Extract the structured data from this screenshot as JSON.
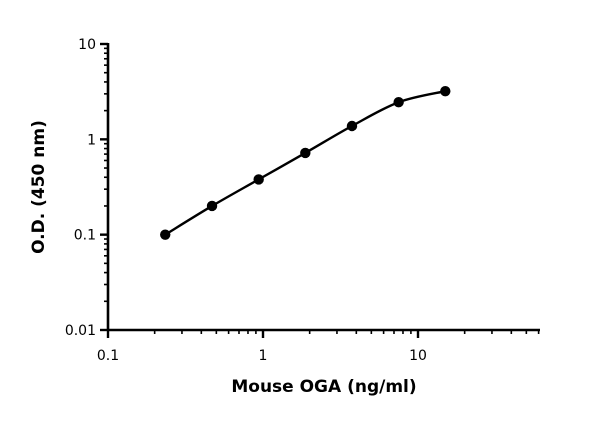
{
  "chart_data": {
    "type": "scatter",
    "xlabel": "Mouse OGA (ng/ml)",
    "ylabel": "O.D. (450 nm)",
    "xscale": "log",
    "yscale": "log",
    "xlim": [
      0.1,
      60
    ],
    "ylim": [
      0.01,
      10
    ],
    "x_ticks": [
      {
        "value": 0.1,
        "label": "0.1"
      },
      {
        "value": 1,
        "label": "1"
      },
      {
        "value": 10,
        "label": "10"
      }
    ],
    "y_ticks": [
      {
        "value": 0.01,
        "label": "0.01"
      },
      {
        "value": 0.1,
        "label": "0.1"
      },
      {
        "value": 1,
        "label": "1"
      },
      {
        "value": 10,
        "label": "10"
      }
    ],
    "grid": false,
    "legend": "none",
    "series": [
      {
        "x": [
          0.234,
          0.469,
          0.938,
          1.875,
          3.75,
          7.5,
          15
        ],
        "y": [
          0.1,
          0.2,
          0.38,
          0.72,
          1.38,
          2.45,
          3.2
        ],
        "marker": "circle",
        "fit_curve": true,
        "color": "#000000"
      }
    ]
  }
}
